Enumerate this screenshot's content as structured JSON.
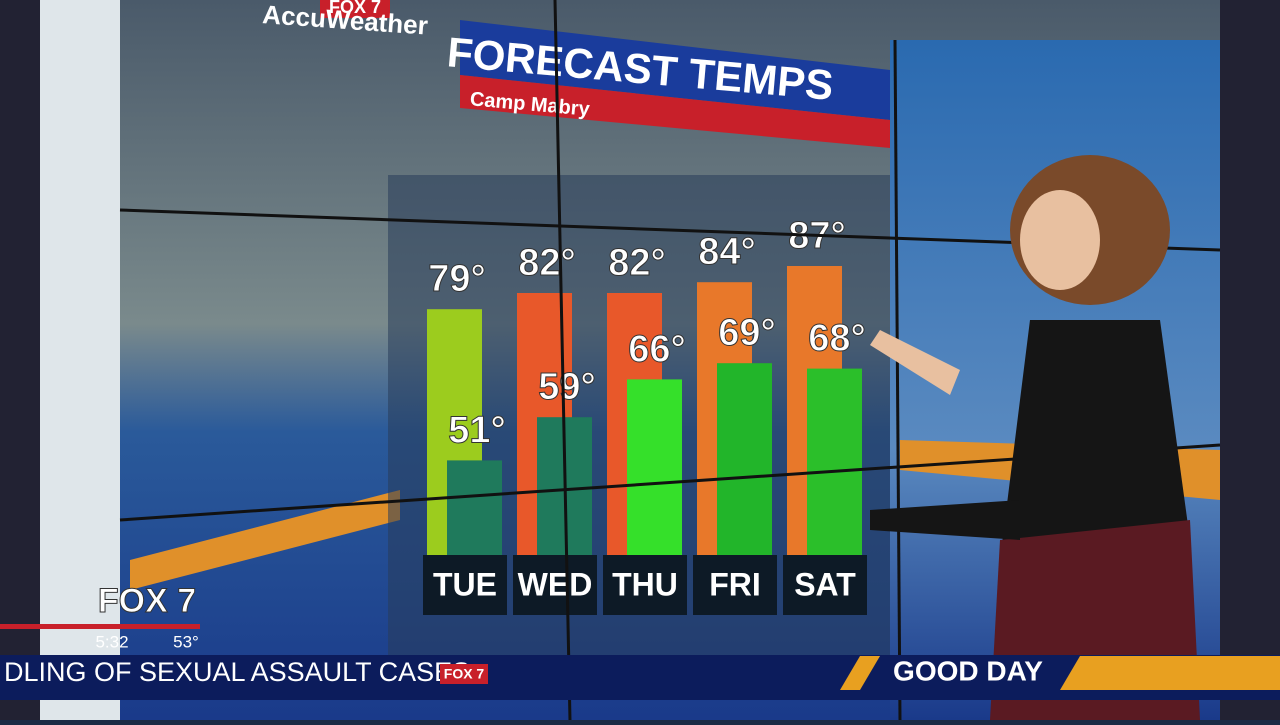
{
  "station_logo": "FOX 7",
  "brand": "AccuWeather",
  "corner_logo": "FOX 7",
  "time": "5:32",
  "current_temp": "53°",
  "ticker": {
    "text": "DLING OF SEXUAL ASSAULT CASES",
    "logo": "FOX 7",
    "show": "GOOD DAY"
  },
  "chart_data": {
    "type": "bar",
    "title": "FORECAST TEMPS",
    "subtitle": "Camp Mabry",
    "categories": [
      "TUE",
      "WED",
      "THU",
      "FRI",
      "SAT"
    ],
    "series": [
      {
        "colors": [
          "#9ccc1e",
          "#e8582a",
          "#e8582a",
          "#e8782a",
          "#e8782a"
        ],
        "values": [
          79,
          82,
          82,
          84,
          87
        ],
        "value_labels": [
          "79°",
          "82°",
          "82°",
          "84°",
          "87°"
        ]
      },
      {
        "colors": [
          "#1f7a5c",
          "#1f7a5c",
          "#35e02a",
          "#22b52a",
          "#2bbf2a"
        ],
        "values": [
          51,
          59,
          66,
          69,
          68
        ],
        "value_labels": [
          "51°",
          "59°",
          "66°",
          "69°",
          "68°"
        ]
      }
    ]
  }
}
